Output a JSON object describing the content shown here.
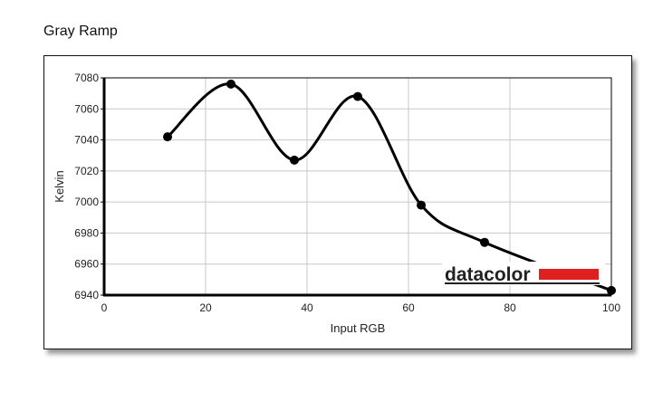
{
  "page_title": "Gray Ramp",
  "chart_data": {
    "type": "line",
    "title": "",
    "xlabel": "Input RGB",
    "ylabel": "Kelvin",
    "xlim": [
      0,
      100
    ],
    "ylim": [
      6940,
      7080
    ],
    "xticks": [
      0,
      20,
      40,
      60,
      80,
      100
    ],
    "yticks": [
      6940,
      6960,
      6980,
      7000,
      7020,
      7040,
      7060,
      7080
    ],
    "grid": true,
    "smooth": true,
    "series": [
      {
        "x": [
          12.5,
          25,
          37.5,
          50,
          62.5,
          75,
          100
        ],
        "y": [
          7042,
          7076,
          7027,
          7068,
          6998,
          6974,
          6943
        ],
        "color": "#000000"
      }
    ]
  },
  "logo": {
    "text": "datacolor",
    "accent_color": "#e02020"
  }
}
